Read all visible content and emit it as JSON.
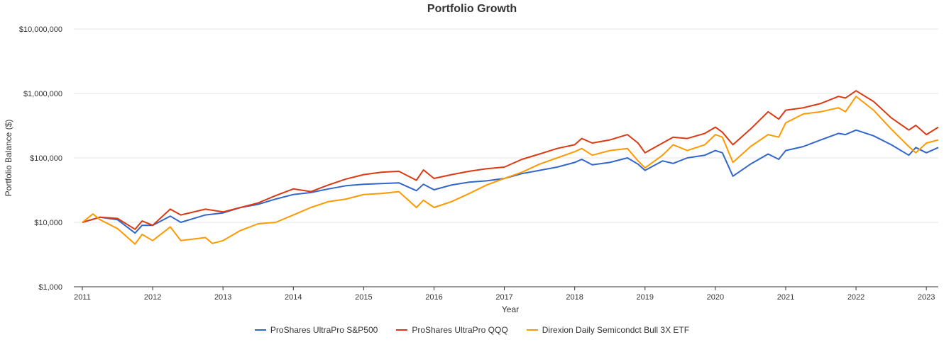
{
  "chart_data": {
    "type": "line",
    "title": "Portfolio Growth",
    "xlabel": "Year",
    "ylabel": "Portfolio Balance ($)",
    "yscale": "log",
    "ylim": [
      1000,
      10000000
    ],
    "xlim": [
      2011.0,
      2023.17
    ],
    "y_ticks": [
      {
        "value": 1000,
        "label": "$1,000"
      },
      {
        "value": 10000,
        "label": "$10,000"
      },
      {
        "value": 100000,
        "label": "$100,000"
      },
      {
        "value": 1000000,
        "label": "$1,000,000"
      },
      {
        "value": 10000000,
        "label": "$10,000,000"
      }
    ],
    "x_ticks": [
      {
        "value": 2011,
        "label": "2011"
      },
      {
        "value": 2012,
        "label": "2012"
      },
      {
        "value": 2013,
        "label": "2013"
      },
      {
        "value": 2014,
        "label": "2014"
      },
      {
        "value": 2015,
        "label": "2015"
      },
      {
        "value": 2016,
        "label": "2016"
      },
      {
        "value": 2017,
        "label": "2017"
      },
      {
        "value": 2018,
        "label": "2018"
      },
      {
        "value": 2019,
        "label": "2019"
      },
      {
        "value": 2020,
        "label": "2020"
      },
      {
        "value": 2021,
        "label": "2021"
      },
      {
        "value": 2022,
        "label": "2022"
      },
      {
        "value": 2023,
        "label": "2023"
      }
    ],
    "grid": true,
    "legend_position": "bottom-center",
    "series": [
      {
        "name": "ProShares UltraPro S&P500",
        "color": "#3366cc",
        "points": [
          [
            2011.0,
            10000
          ],
          [
            2011.25,
            12000
          ],
          [
            2011.5,
            11000
          ],
          [
            2011.75,
            6800
          ],
          [
            2011.85,
            9000
          ],
          [
            2012.0,
            9000
          ],
          [
            2012.25,
            12500
          ],
          [
            2012.4,
            10000
          ],
          [
            2012.75,
            13000
          ],
          [
            2013.0,
            14000
          ],
          [
            2013.25,
            17000
          ],
          [
            2013.5,
            19000
          ],
          [
            2013.75,
            23000
          ],
          [
            2014.0,
            27000
          ],
          [
            2014.25,
            29000
          ],
          [
            2014.5,
            33000
          ],
          [
            2014.75,
            37000
          ],
          [
            2015.0,
            39000
          ],
          [
            2015.25,
            40000
          ],
          [
            2015.5,
            41000
          ],
          [
            2015.75,
            31000
          ],
          [
            2015.85,
            39000
          ],
          [
            2016.0,
            32000
          ],
          [
            2016.25,
            38000
          ],
          [
            2016.5,
            42000
          ],
          [
            2016.75,
            44000
          ],
          [
            2017.0,
            48000
          ],
          [
            2017.25,
            57000
          ],
          [
            2017.5,
            64000
          ],
          [
            2017.75,
            72000
          ],
          [
            2018.0,
            85000
          ],
          [
            2018.1,
            95000
          ],
          [
            2018.25,
            78000
          ],
          [
            2018.5,
            85000
          ],
          [
            2018.75,
            100000
          ],
          [
            2018.9,
            80000
          ],
          [
            2019.0,
            64000
          ],
          [
            2019.25,
            90000
          ],
          [
            2019.4,
            82000
          ],
          [
            2019.6,
            100000
          ],
          [
            2019.85,
            110000
          ],
          [
            2020.0,
            130000
          ],
          [
            2020.1,
            120000
          ],
          [
            2020.25,
            52000
          ],
          [
            2020.5,
            80000
          ],
          [
            2020.75,
            115000
          ],
          [
            2020.9,
            95000
          ],
          [
            2021.0,
            130000
          ],
          [
            2021.25,
            150000
          ],
          [
            2021.5,
            190000
          ],
          [
            2021.75,
            240000
          ],
          [
            2021.85,
            230000
          ],
          [
            2022.0,
            270000
          ],
          [
            2022.25,
            220000
          ],
          [
            2022.5,
            160000
          ],
          [
            2022.75,
            110000
          ],
          [
            2022.85,
            145000
          ],
          [
            2023.0,
            120000
          ],
          [
            2023.17,
            145000
          ]
        ]
      },
      {
        "name": "ProShares UltraPro QQQ",
        "color": "#dc3912",
        "points": [
          [
            2011.0,
            10000
          ],
          [
            2011.25,
            12000
          ],
          [
            2011.5,
            11500
          ],
          [
            2011.75,
            7800
          ],
          [
            2011.85,
            10500
          ],
          [
            2012.0,
            9000
          ],
          [
            2012.25,
            16000
          ],
          [
            2012.4,
            13000
          ],
          [
            2012.75,
            16000
          ],
          [
            2013.0,
            14500
          ],
          [
            2013.25,
            17000
          ],
          [
            2013.5,
            20000
          ],
          [
            2013.75,
            26000
          ],
          [
            2014.0,
            33000
          ],
          [
            2014.25,
            30000
          ],
          [
            2014.5,
            38000
          ],
          [
            2014.75,
            47000
          ],
          [
            2015.0,
            55000
          ],
          [
            2015.25,
            60000
          ],
          [
            2015.5,
            62000
          ],
          [
            2015.75,
            45000
          ],
          [
            2015.85,
            65000
          ],
          [
            2016.0,
            48000
          ],
          [
            2016.25,
            55000
          ],
          [
            2016.5,
            62000
          ],
          [
            2016.75,
            68000
          ],
          [
            2017.0,
            72000
          ],
          [
            2017.25,
            95000
          ],
          [
            2017.5,
            115000
          ],
          [
            2017.75,
            140000
          ],
          [
            2018.0,
            160000
          ],
          [
            2018.1,
            200000
          ],
          [
            2018.25,
            170000
          ],
          [
            2018.5,
            190000
          ],
          [
            2018.75,
            230000
          ],
          [
            2018.9,
            170000
          ],
          [
            2019.0,
            120000
          ],
          [
            2019.25,
            170000
          ],
          [
            2019.4,
            210000
          ],
          [
            2019.6,
            200000
          ],
          [
            2019.85,
            240000
          ],
          [
            2020.0,
            300000
          ],
          [
            2020.1,
            250000
          ],
          [
            2020.25,
            160000
          ],
          [
            2020.5,
            280000
          ],
          [
            2020.75,
            520000
          ],
          [
            2020.9,
            400000
          ],
          [
            2021.0,
            550000
          ],
          [
            2021.25,
            600000
          ],
          [
            2021.5,
            700000
          ],
          [
            2021.75,
            900000
          ],
          [
            2021.85,
            850000
          ],
          [
            2022.0,
            1100000
          ],
          [
            2022.25,
            750000
          ],
          [
            2022.5,
            420000
          ],
          [
            2022.75,
            270000
          ],
          [
            2022.85,
            320000
          ],
          [
            2023.0,
            230000
          ],
          [
            2023.17,
            300000
          ]
        ]
      },
      {
        "name": "Direxion Daily Semicondct Bull 3X ETF",
        "color": "#ff9900",
        "points": [
          [
            2011.0,
            10000
          ],
          [
            2011.15,
            13500
          ],
          [
            2011.25,
            11000
          ],
          [
            2011.5,
            8000
          ],
          [
            2011.75,
            4600
          ],
          [
            2011.85,
            6500
          ],
          [
            2012.0,
            5200
          ],
          [
            2012.25,
            8500
          ],
          [
            2012.4,
            5200
          ],
          [
            2012.75,
            5800
          ],
          [
            2012.85,
            4700
          ],
          [
            2013.0,
            5200
          ],
          [
            2013.25,
            7500
          ],
          [
            2013.5,
            9500
          ],
          [
            2013.75,
            10000
          ],
          [
            2014.0,
            13000
          ],
          [
            2014.25,
            17000
          ],
          [
            2014.5,
            21000
          ],
          [
            2014.75,
            23000
          ],
          [
            2015.0,
            27000
          ],
          [
            2015.25,
            28000
          ],
          [
            2015.5,
            30000
          ],
          [
            2015.75,
            17000
          ],
          [
            2015.85,
            22000
          ],
          [
            2016.0,
            17000
          ],
          [
            2016.25,
            21000
          ],
          [
            2016.5,
            28000
          ],
          [
            2016.75,
            38000
          ],
          [
            2017.0,
            48000
          ],
          [
            2017.25,
            60000
          ],
          [
            2017.5,
            80000
          ],
          [
            2017.75,
            100000
          ],
          [
            2018.0,
            125000
          ],
          [
            2018.1,
            140000
          ],
          [
            2018.25,
            110000
          ],
          [
            2018.5,
            130000
          ],
          [
            2018.75,
            140000
          ],
          [
            2018.9,
            90000
          ],
          [
            2019.0,
            70000
          ],
          [
            2019.25,
            110000
          ],
          [
            2019.4,
            160000
          ],
          [
            2019.6,
            130000
          ],
          [
            2019.85,
            160000
          ],
          [
            2020.0,
            230000
          ],
          [
            2020.1,
            210000
          ],
          [
            2020.25,
            85000
          ],
          [
            2020.5,
            150000
          ],
          [
            2020.75,
            230000
          ],
          [
            2020.9,
            210000
          ],
          [
            2021.0,
            350000
          ],
          [
            2021.25,
            480000
          ],
          [
            2021.5,
            520000
          ],
          [
            2021.75,
            600000
          ],
          [
            2021.85,
            520000
          ],
          [
            2022.0,
            900000
          ],
          [
            2022.25,
            550000
          ],
          [
            2022.5,
            280000
          ],
          [
            2022.75,
            150000
          ],
          [
            2022.85,
            120000
          ],
          [
            2023.0,
            170000
          ],
          [
            2023.17,
            190000
          ]
        ]
      }
    ]
  }
}
